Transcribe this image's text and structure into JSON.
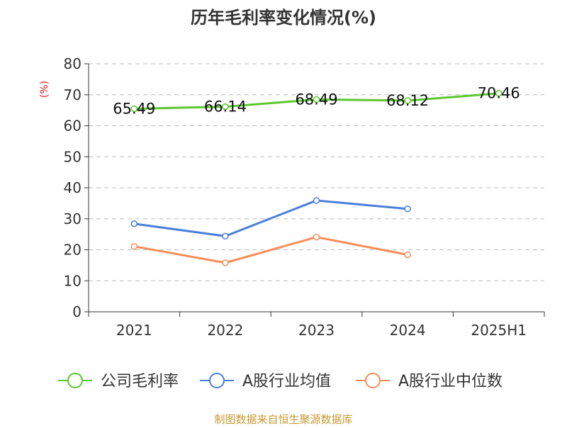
{
  "chart_data": {
    "type": "line",
    "title": "历年毛利率变化情况(%)",
    "ylabel": "(%)",
    "xlabel": "",
    "categories": [
      "2021",
      "2022",
      "2023",
      "2024",
      "2025H1"
    ],
    "ylim": [
      0,
      80
    ],
    "yticks": [
      0,
      10,
      20,
      30,
      40,
      50,
      60,
      70,
      80
    ],
    "grid": true,
    "legend_position": "bottom",
    "series": [
      {
        "name": "公司毛利率",
        "color": "#5cc72e",
        "values": [
          65.49,
          66.14,
          68.49,
          68.12,
          70.46
        ],
        "show_labels": true
      },
      {
        "name": "A股行业均值",
        "color": "#4a7fd9",
        "values": [
          28.4,
          24.4,
          35.9,
          33.2,
          null
        ],
        "show_labels": false
      },
      {
        "name": "A股行业中位数",
        "color": "#f78d5a",
        "values": [
          21.1,
          15.8,
          24.1,
          18.4,
          null
        ],
        "show_labels": false
      }
    ],
    "data_labels": [
      "65.49",
      "66.14",
      "68.49",
      "68.12",
      "70.46"
    ]
  },
  "footer": {
    "source": "制图数据来自恒生聚源数据库"
  },
  "colors": {
    "title": "#333333",
    "axis": "#333333",
    "grid": "#bbbbbb",
    "ylabel": "#e0191a",
    "source": "#c79a32"
  }
}
